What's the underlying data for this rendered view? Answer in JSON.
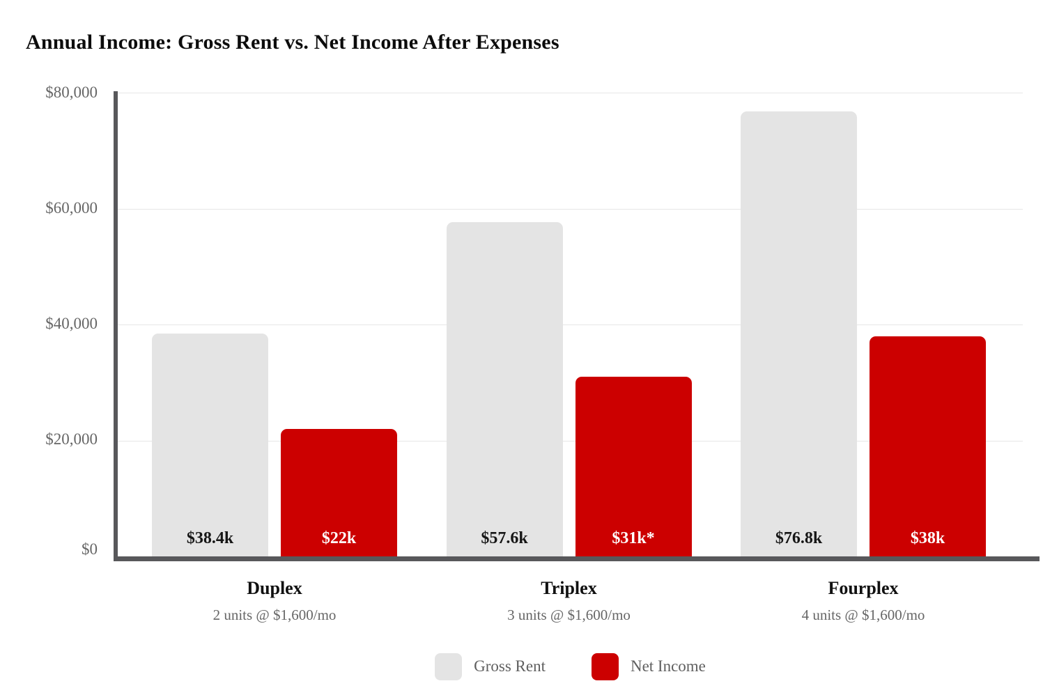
{
  "title": "Annual Income: Gross Rent vs. Net Income After Expenses",
  "chart_data": {
    "type": "bar",
    "title": "Annual Income: Gross Rent vs. Net Income After Expenses",
    "categories": [
      {
        "label": "Duplex",
        "subtitle": "2 units @ $1,600/mo"
      },
      {
        "label": "Triplex",
        "subtitle": "3 units @ $1,600/mo"
      },
      {
        "label": "Fourplex",
        "subtitle": "4 units @ $1,600/mo"
      }
    ],
    "series": [
      {
        "name": "Gross Rent",
        "color": "#e4e4e4",
        "label_color": "#161616",
        "values": [
          38400,
          57600,
          76800
        ],
        "value_labels": [
          "$38.4k",
          "$57.6k",
          "$76.8k"
        ]
      },
      {
        "name": "Net Income",
        "color": "#cc0000",
        "label_color": "#ffffff",
        "values": [
          22000,
          31000,
          38000
        ],
        "value_labels": [
          "$22k",
          "$31k*",
          "$38k"
        ]
      }
    ],
    "ylim": [
      0,
      80000
    ],
    "y_ticks": [
      "$80,000",
      "$60,000",
      "$40,000",
      "$20,000",
      "$0"
    ],
    "y_tick_values": [
      80000,
      60000,
      40000,
      20000,
      0
    ],
    "grid": true,
    "legend_position": "bottom",
    "colors": {
      "axis": "#58585b",
      "gridline": "#e7e7e7",
      "tick_label": "#666666"
    }
  },
  "legend": {
    "items": [
      {
        "label": "Gross Rent",
        "color": "#e4e4e4"
      },
      {
        "label": "Net Income",
        "color": "#cc0000"
      }
    ]
  }
}
